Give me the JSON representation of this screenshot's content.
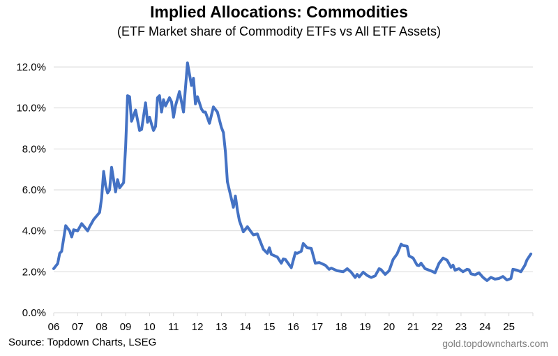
{
  "chart_data": {
    "type": "line",
    "title": "Implied Allocations: Commodities",
    "subtitle": "(ETF Market share of Commodity ETFs vs All ETF Assets)",
    "xlabel": "",
    "ylabel": "",
    "xlim": [
      "2006-01",
      "2026-01"
    ],
    "ylim": [
      0,
      12
    ],
    "y_ticks": [
      "0.0%",
      "2.0%",
      "4.0%",
      "6.0%",
      "8.0%",
      "10.0%",
      "12.0%"
    ],
    "x_ticks": [
      "06",
      "07",
      "08",
      "09",
      "10",
      "11",
      "12",
      "13",
      "14",
      "15",
      "16",
      "17",
      "18",
      "19",
      "20",
      "21",
      "22",
      "23",
      "24",
      "25"
    ],
    "grid": "horizontal",
    "line_color": "#4472c4",
    "grid_color": "#d9d9d9",
    "series": [
      {
        "points": [
          [
            "2006-01",
            2.15
          ],
          [
            "2006-03",
            2.4
          ],
          [
            "2006-04",
            2.9
          ],
          [
            "2006-05",
            3.0
          ],
          [
            "2006-07",
            4.25
          ],
          [
            "2006-09",
            4.0
          ],
          [
            "2006-10",
            3.7
          ],
          [
            "2006-11",
            4.05
          ],
          [
            "2007-01",
            4.0
          ],
          [
            "2007-03",
            4.35
          ],
          [
            "2007-06",
            4.0
          ],
          [
            "2007-07",
            4.2
          ],
          [
            "2007-09",
            4.55
          ],
          [
            "2007-12",
            4.9
          ],
          [
            "2008-01",
            5.6
          ],
          [
            "2008-02",
            6.9
          ],
          [
            "2008-03",
            6.2
          ],
          [
            "2008-04",
            5.85
          ],
          [
            "2008-05",
            6.0
          ],
          [
            "2008-06",
            7.1
          ],
          [
            "2008-08",
            5.9
          ],
          [
            "2008-09",
            6.5
          ],
          [
            "2008-10",
            6.1
          ],
          [
            "2008-12",
            6.35
          ],
          [
            "2009-01",
            8.1
          ],
          [
            "2009-02",
            10.6
          ],
          [
            "2009-03",
            10.55
          ],
          [
            "2009-04",
            9.35
          ],
          [
            "2009-06",
            9.9
          ],
          [
            "2009-08",
            8.9
          ],
          [
            "2009-09",
            8.95
          ],
          [
            "2009-11",
            10.25
          ],
          [
            "2009-12",
            9.3
          ],
          [
            "2010-01",
            9.55
          ],
          [
            "2010-02",
            9.2
          ],
          [
            "2010-03",
            8.9
          ],
          [
            "2010-04",
            9.1
          ],
          [
            "2010-05",
            10.5
          ],
          [
            "2010-06",
            10.6
          ],
          [
            "2010-07",
            9.8
          ],
          [
            "2010-08",
            10.4
          ],
          [
            "2010-09",
            10.1
          ],
          [
            "2010-11",
            10.5
          ],
          [
            "2010-12",
            10.3
          ],
          [
            "2011-01",
            9.55
          ],
          [
            "2011-02",
            10.1
          ],
          [
            "2011-04",
            10.8
          ],
          [
            "2011-05",
            10.3
          ],
          [
            "2011-06",
            9.8
          ],
          [
            "2011-08",
            12.2
          ],
          [
            "2011-10",
            11.1
          ],
          [
            "2011-11",
            11.45
          ],
          [
            "2011-12",
            10.2
          ],
          [
            "2012-01",
            10.55
          ],
          [
            "2012-03",
            9.95
          ],
          [
            "2012-04",
            9.8
          ],
          [
            "2012-05",
            9.8
          ],
          [
            "2012-07",
            9.25
          ],
          [
            "2012-09",
            10.05
          ],
          [
            "2012-11",
            9.8
          ],
          [
            "2013-01",
            9.05
          ],
          [
            "2013-02",
            8.8
          ],
          [
            "2013-03",
            7.85
          ],
          [
            "2013-04",
            6.4
          ],
          [
            "2013-07",
            5.15
          ],
          [
            "2013-08",
            5.7
          ],
          [
            "2013-09",
            5.0
          ],
          [
            "2013-10",
            4.5
          ],
          [
            "2013-12",
            3.95
          ],
          [
            "2014-02",
            4.2
          ],
          [
            "2014-05",
            3.8
          ],
          [
            "2014-07",
            3.85
          ],
          [
            "2014-08",
            3.6
          ],
          [
            "2014-10",
            3.1
          ],
          [
            "2014-12",
            2.9
          ],
          [
            "2015-01",
            3.17
          ],
          [
            "2015-02",
            2.85
          ],
          [
            "2015-05",
            2.72
          ],
          [
            "2015-07",
            2.42
          ],
          [
            "2015-08",
            2.63
          ],
          [
            "2015-09",
            2.6
          ],
          [
            "2015-12",
            2.2
          ],
          [
            "2016-02",
            2.93
          ],
          [
            "2016-03",
            2.9
          ],
          [
            "2016-05",
            3.0
          ],
          [
            "2016-06",
            3.38
          ],
          [
            "2016-08",
            3.17
          ],
          [
            "2016-10",
            3.14
          ],
          [
            "2016-12",
            2.42
          ],
          [
            "2017-02",
            2.45
          ],
          [
            "2017-05",
            2.32
          ],
          [
            "2017-07",
            2.12
          ],
          [
            "2017-08",
            2.18
          ],
          [
            "2017-11",
            2.05
          ],
          [
            "2018-02",
            2.0
          ],
          [
            "2018-04",
            2.15
          ],
          [
            "2018-06",
            1.98
          ],
          [
            "2018-08",
            1.72
          ],
          [
            "2018-09",
            1.87
          ],
          [
            "2018-10",
            1.75
          ],
          [
            "2018-12",
            1.98
          ],
          [
            "2019-02",
            1.82
          ],
          [
            "2019-04",
            1.72
          ],
          [
            "2019-06",
            1.8
          ],
          [
            "2019-08",
            2.15
          ],
          [
            "2019-09",
            2.1
          ],
          [
            "2019-11",
            1.87
          ],
          [
            "2020-01",
            2.05
          ],
          [
            "2020-03",
            2.6
          ],
          [
            "2020-05",
            2.87
          ],
          [
            "2020-07",
            3.35
          ],
          [
            "2020-08",
            3.28
          ],
          [
            "2020-10",
            3.25
          ],
          [
            "2020-11",
            2.77
          ],
          [
            "2021-01",
            2.67
          ],
          [
            "2021-03",
            2.32
          ],
          [
            "2021-04",
            2.3
          ],
          [
            "2021-05",
            2.42
          ],
          [
            "2021-07",
            2.15
          ],
          [
            "2021-09",
            2.08
          ],
          [
            "2021-11",
            2.0
          ],
          [
            "2021-12",
            1.95
          ],
          [
            "2022-02",
            2.42
          ],
          [
            "2022-04",
            2.67
          ],
          [
            "2022-06",
            2.57
          ],
          [
            "2022-08",
            2.22
          ],
          [
            "2022-09",
            2.32
          ],
          [
            "2022-10",
            2.08
          ],
          [
            "2022-12",
            2.15
          ],
          [
            "2023-02",
            2.0
          ],
          [
            "2023-04",
            2.12
          ],
          [
            "2023-05",
            2.1
          ],
          [
            "2023-06",
            1.9
          ],
          [
            "2023-08",
            1.85
          ],
          [
            "2023-10",
            1.95
          ],
          [
            "2023-12",
            1.73
          ],
          [
            "2024-02",
            1.57
          ],
          [
            "2024-04",
            1.73
          ],
          [
            "2024-06",
            1.64
          ],
          [
            "2024-08",
            1.67
          ],
          [
            "2024-10",
            1.77
          ],
          [
            "2024-12",
            1.6
          ],
          [
            "2025-02",
            1.67
          ],
          [
            "2025-03",
            2.12
          ],
          [
            "2025-05",
            2.08
          ],
          [
            "2025-07",
            2.0
          ],
          [
            "2025-09",
            2.32
          ],
          [
            "2025-10",
            2.57
          ],
          [
            "2025-12",
            2.87
          ]
        ]
      }
    ]
  },
  "footer": {
    "source": "Source: Topdown Charts, LSEG",
    "watermark": "gold.topdowncharts.com"
  }
}
